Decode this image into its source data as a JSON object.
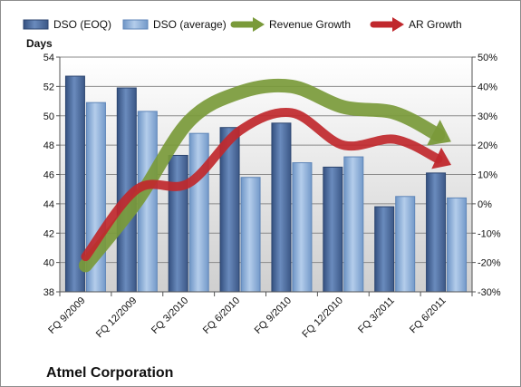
{
  "chart_data": {
    "type": "bar",
    "title": "",
    "company": "Atmel Corporation",
    "ylabel": "Days",
    "categories": [
      "FQ 9/2009",
      "FQ 12/2009",
      "FQ 3/2010",
      "FQ 6/2010",
      "FQ 9/2010",
      "FQ 12/2010",
      "FQ 3/2011",
      "FQ 6/2011"
    ],
    "ylim": [
      38,
      54
    ],
    "y_ticks": [
      "38",
      "40",
      "42",
      "44",
      "46",
      "48",
      "50",
      "52",
      "54"
    ],
    "y2lim": [
      -30,
      50
    ],
    "y2_ticks": [
      "-30%",
      "-20%",
      "-10%",
      "0%",
      "10%",
      "20%",
      "30%",
      "40%",
      "50%"
    ],
    "grid": true,
    "legend_position": "top",
    "series": [
      {
        "name": "DSO (EOQ)",
        "kind": "bar",
        "color": "#4f6d9c",
        "values": [
          52.7,
          51.9,
          47.3,
          49.2,
          49.5,
          46.5,
          43.8,
          46.1
        ]
      },
      {
        "name": "DSO (average)",
        "kind": "bar",
        "color": "#8fb3dc",
        "values": [
          50.9,
          50.3,
          48.8,
          45.8,
          46.8,
          47.2,
          44.5,
          44.4
        ]
      },
      {
        "name": "Revenue Growth",
        "kind": "arrow-line",
        "axis": "secondary",
        "color": "#7a9a3a",
        "values": [
          -21,
          1,
          28,
          38,
          40,
          33,
          31,
          22
        ]
      },
      {
        "name": "AR Growth",
        "kind": "arrow-line",
        "axis": "secondary",
        "color": "#c0282d",
        "values": [
          -18,
          5,
          7,
          25,
          31,
          20,
          22,
          14
        ]
      }
    ]
  }
}
